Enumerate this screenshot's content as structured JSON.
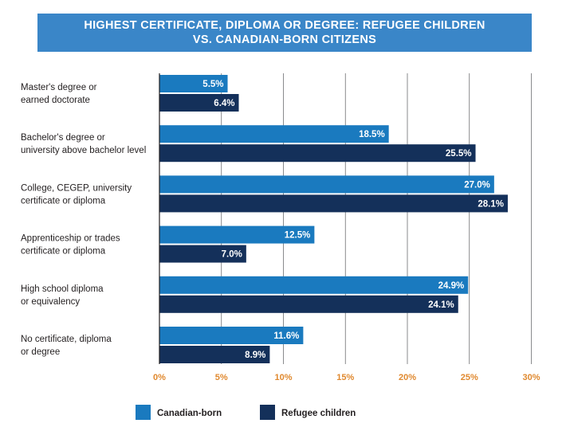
{
  "chart_data": {
    "type": "bar",
    "orientation": "horizontal",
    "title_lines": [
      "HIGHEST CERTIFICATE, DIPLOMA OR DEGREE: REFUGEE CHILDREN",
      "VS. CANADIAN-BORN CITIZENS"
    ],
    "categories": [
      [
        "Master's degree or",
        "earned doctorate"
      ],
      [
        "Bachelor's degree or",
        "university above bachelor level"
      ],
      [
        "College, CEGEP, university",
        "certificate or diploma"
      ],
      [
        "Apprenticeship or trades",
        "certificate or diploma"
      ],
      [
        "High school diploma",
        "or equivalency"
      ],
      [
        "No certificate, diploma",
        "or degree"
      ]
    ],
    "series": [
      {
        "name": "Canadian-born",
        "color": "#1a7abf",
        "values": [
          5.5,
          18.5,
          27.0,
          12.5,
          24.9,
          11.6
        ],
        "labels": [
          "5.5%",
          "18.5%",
          "27.0%",
          "12.5%",
          "24.9%",
          "11.6%"
        ]
      },
      {
        "name": "Refugee children",
        "color": "#14305a",
        "values": [
          6.4,
          25.5,
          28.1,
          7.0,
          24.1,
          8.9
        ],
        "labels": [
          "6.4%",
          "25.5%",
          "28.1%",
          "7.0%",
          "24.1%",
          "8.9%"
        ]
      }
    ],
    "x_ticks": [
      0,
      5,
      10,
      15,
      20,
      25,
      30
    ],
    "x_tick_labels": [
      "0%",
      "5%",
      "10%",
      "15%",
      "20%",
      "25%",
      "30%"
    ],
    "xlim": [
      0,
      30
    ],
    "grid": true,
    "legend_position": "bottom"
  }
}
